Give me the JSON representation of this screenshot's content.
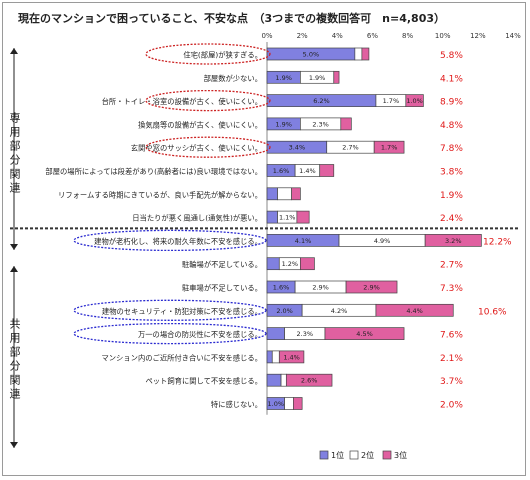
{
  "title": "現在のマンションで困っていること、不安な点　（3つまでの複数回答可　n=4,803）",
  "group_labels": {
    "private": "専用部分関連",
    "common": "共用部分関連"
  },
  "legend": {
    "first": "1位",
    "second": "2位",
    "third": "3位"
  },
  "colors": {
    "first": "#8080e0",
    "second": "#ffffff",
    "third": "#e060a0",
    "total_text": "#e01818",
    "highlight_red": "#cc2222",
    "highlight_blue": "#2a2ad0"
  },
  "chart_data": {
    "type": "bar",
    "stacked": true,
    "orientation": "horizontal",
    "xlim": [
      0,
      14
    ],
    "xticks": [
      "0%",
      "2%",
      "4%",
      "6%",
      "8%",
      "10%",
      "12%",
      "14%"
    ],
    "categories": [
      "住宅(部屋)が狭すぎる。",
      "部屋数が少ない。",
      "台所・トイレ・浴室の設備が古く、使いにくい。",
      "換気扇等の設備が古く、使いにくい。",
      "玄関や窓のサッシが古く、使いにくい。",
      "部屋の場所によっては段差があり(高齢者には)良い環境ではない。",
      "リフォームする時期にきているが、良い手配先が解からない。",
      "日当たりが悪く風通し(通気性)が悪い。",
      "建物が老朽化し、将来の耐久年数に不安を感じる。",
      "駐輪場が不足している。",
      "駐車場が不足している。",
      "建物のセキュリティ・防犯対策に不安を感じる。",
      "万一の場合の防災性に不安を感じる。",
      "マンション内のご近所付き合いに不安を感じる。",
      "ペット飼育に関して不安を感じる。",
      "特に感じない。"
    ],
    "series": [
      {
        "name": "1位",
        "values": [
          5.0,
          1.9,
          6.2,
          1.9,
          3.4,
          1.6,
          0.6,
          0.6,
          4.1,
          0.7,
          1.6,
          2.0,
          1.0,
          0.3,
          0.8,
          1.0
        ]
      },
      {
        "name": "2位",
        "values": [
          0.4,
          1.9,
          1.7,
          2.3,
          2.7,
          1.4,
          0.8,
          1.1,
          4.9,
          1.2,
          2.9,
          4.2,
          2.3,
          0.4,
          0.3,
          0.5
        ]
      },
      {
        "name": "3位",
        "values": [
          0.4,
          0.3,
          1.0,
          0.6,
          1.7,
          0.8,
          0.5,
          0.7,
          3.2,
          0.8,
          2.9,
          4.4,
          4.5,
          1.4,
          2.6,
          0.5
        ]
      }
    ],
    "segment_labels": [
      [
        "5.0%",
        "",
        ""
      ],
      [
        "1.9%",
        "1.9%",
        ""
      ],
      [
        "6.2%",
        "1.7%",
        "1.0%"
      ],
      [
        "1.9%",
        "2.3%",
        ""
      ],
      [
        "3.4%",
        "2.7%",
        "1.7%"
      ],
      [
        "1.6%",
        "1.4%",
        ""
      ],
      [
        "",
        "",
        ""
      ],
      [
        "",
        "1.1%",
        ""
      ],
      [
        "4.1%",
        "4.9%",
        "3.2%"
      ],
      [
        "",
        "1.2%",
        ""
      ],
      [
        "1.6%",
        "2.9%",
        "2.9%"
      ],
      [
        "2.0%",
        "4.2%",
        "4.4%"
      ],
      [
        "",
        "2.3%",
        "4.5%"
      ],
      [
        "",
        "",
        "1.4%"
      ],
      [
        "",
        "",
        "2.6%"
      ],
      [
        "1.0%",
        "",
        ""
      ]
    ],
    "totals": [
      "5.8%",
      "4.1%",
      "8.9%",
      "4.8%",
      "7.8%",
      "3.8%",
      "1.9%",
      "2.4%",
      "12.2%",
      "2.7%",
      "7.3%",
      "10.6%",
      "7.6%",
      "2.1%",
      "3.7%",
      "2.0%"
    ],
    "highlighted_red": [
      0,
      2,
      4
    ],
    "highlighted_blue": [
      8,
      11,
      12
    ]
  }
}
